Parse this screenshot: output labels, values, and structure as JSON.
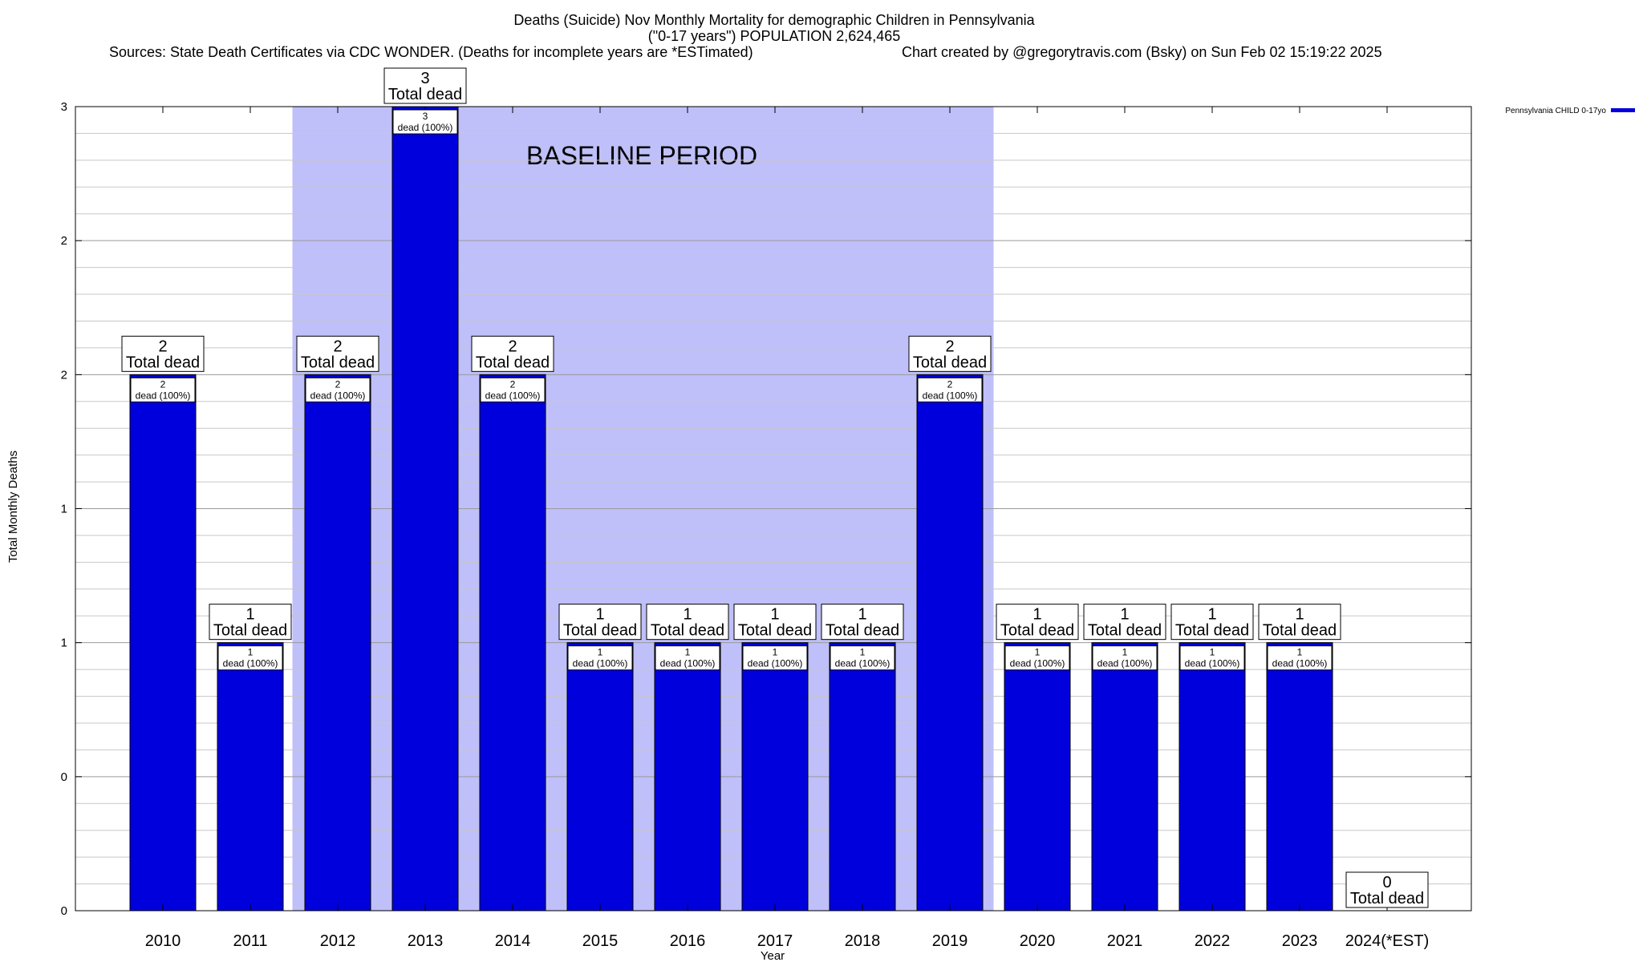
{
  "chart_data": {
    "type": "bar",
    "title": "Deaths (Suicide) Nov Monthly Mortality for demographic Children in Pennsylvania",
    "subtitle": "(\"0-17 years\") POPULATION 2,624,465",
    "sources": "Sources: State Death Certificates via CDC WONDER. (Deaths for incomplete years are *ESTimated)",
    "credit": "Chart created by @gregorytravis.com (Bsky) on Sun Feb 02 15:19:22 2025",
    "xlabel": "Year",
    "ylabel": "Total Monthly Deaths",
    "categories": [
      "2010",
      "2011",
      "2012",
      "2013",
      "2014",
      "2015",
      "2016",
      "2017",
      "2018",
      "2019",
      "2020",
      "2021",
      "2022",
      "2023",
      "2024(*EST)"
    ],
    "series": [
      {
        "name": "Pennsylvania CHILD 0-17yo",
        "color": "#0000dd",
        "values": [
          2,
          1,
          2,
          3,
          2,
          1,
          1,
          1,
          1,
          2,
          1,
          1,
          1,
          1,
          0
        ]
      }
    ],
    "total_labels": [
      "2",
      "1",
      "2",
      "3",
      "2",
      "1",
      "1",
      "1",
      "1",
      "2",
      "1",
      "1",
      "1",
      "1",
      "0"
    ],
    "total_suffix": "Total dead",
    "inner_labels": [
      "2",
      "1",
      "2",
      "3",
      "2",
      "1",
      "1",
      "1",
      "1",
      "2",
      "1",
      "1",
      "1",
      "1",
      ""
    ],
    "inner_suffix": "dead (100%)",
    "ylim": [
      0,
      3
    ],
    "ytick_values": [
      0,
      0.5,
      1,
      1.5,
      2,
      2.5,
      3
    ],
    "ytick_labels": [
      "0",
      "0",
      "1",
      "1",
      "2",
      "2",
      "3"
    ],
    "baseline": {
      "label": "BASELINE PERIOD",
      "start": "2012",
      "end": "2019",
      "color": "#bfbff9"
    },
    "grid": true,
    "legend_position": "top-right"
  }
}
